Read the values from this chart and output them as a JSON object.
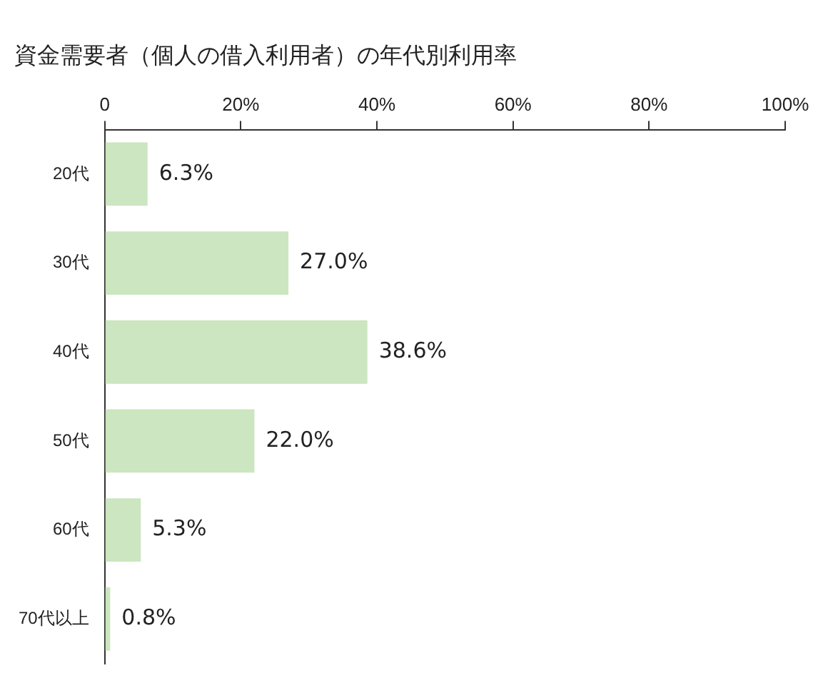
{
  "chart_data": {
    "type": "bar",
    "orientation": "horizontal",
    "title": "資金需要者（個人の借入利用者）の年代別利用率",
    "categories": [
      "20代",
      "30代",
      "40代",
      "50代",
      "60代",
      "70代以上"
    ],
    "values": [
      6.3,
      27.0,
      38.6,
      22.0,
      5.3,
      0.8
    ],
    "value_labels": [
      "6.3%",
      "27.0%",
      "38.6%",
      "22.0%",
      "5.3%",
      "0.8%"
    ],
    "color": "#cbe6c0",
    "xlim": [
      0,
      100
    ],
    "xticks": [
      0,
      {
        "value": 20,
        "label": "20%"
      },
      {
        "value": 40,
        "label": "40%"
      },
      {
        "value": 60,
        "label": "60%"
      },
      {
        "value": 80,
        "label": "80%"
      },
      {
        "value": 100,
        "label": "100%"
      }
    ],
    "grid": false,
    "legend": false
  }
}
